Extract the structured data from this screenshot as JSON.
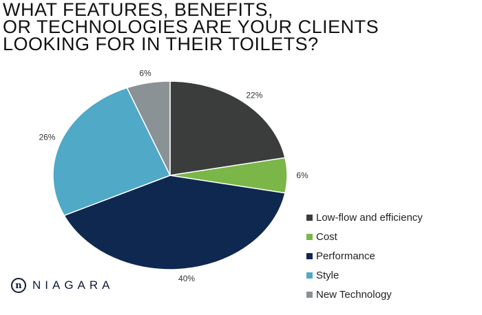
{
  "chart_data": {
    "type": "pie",
    "title": "WHAT FEATURES, BENEFITS,\nOR TECHNOLOGIES ARE YOUR CLIENTS\nLOOKING FOR IN THEIR TOILETS?",
    "categories": [
      "Low-flow and efficiency",
      "Cost",
      "Performance",
      "Style",
      "New Technology"
    ],
    "values": [
      22,
      6,
      40,
      26,
      6
    ],
    "labels": [
      "22%",
      "6%",
      "40%",
      "26%",
      "6%"
    ],
    "colors": [
      "#3a3d3b",
      "#7ab648",
      "#0f2850",
      "#4fa9c7",
      "#8a9296"
    ],
    "legend_placement": "bottom-right"
  },
  "logo": {
    "text": "NIAGARA"
  }
}
